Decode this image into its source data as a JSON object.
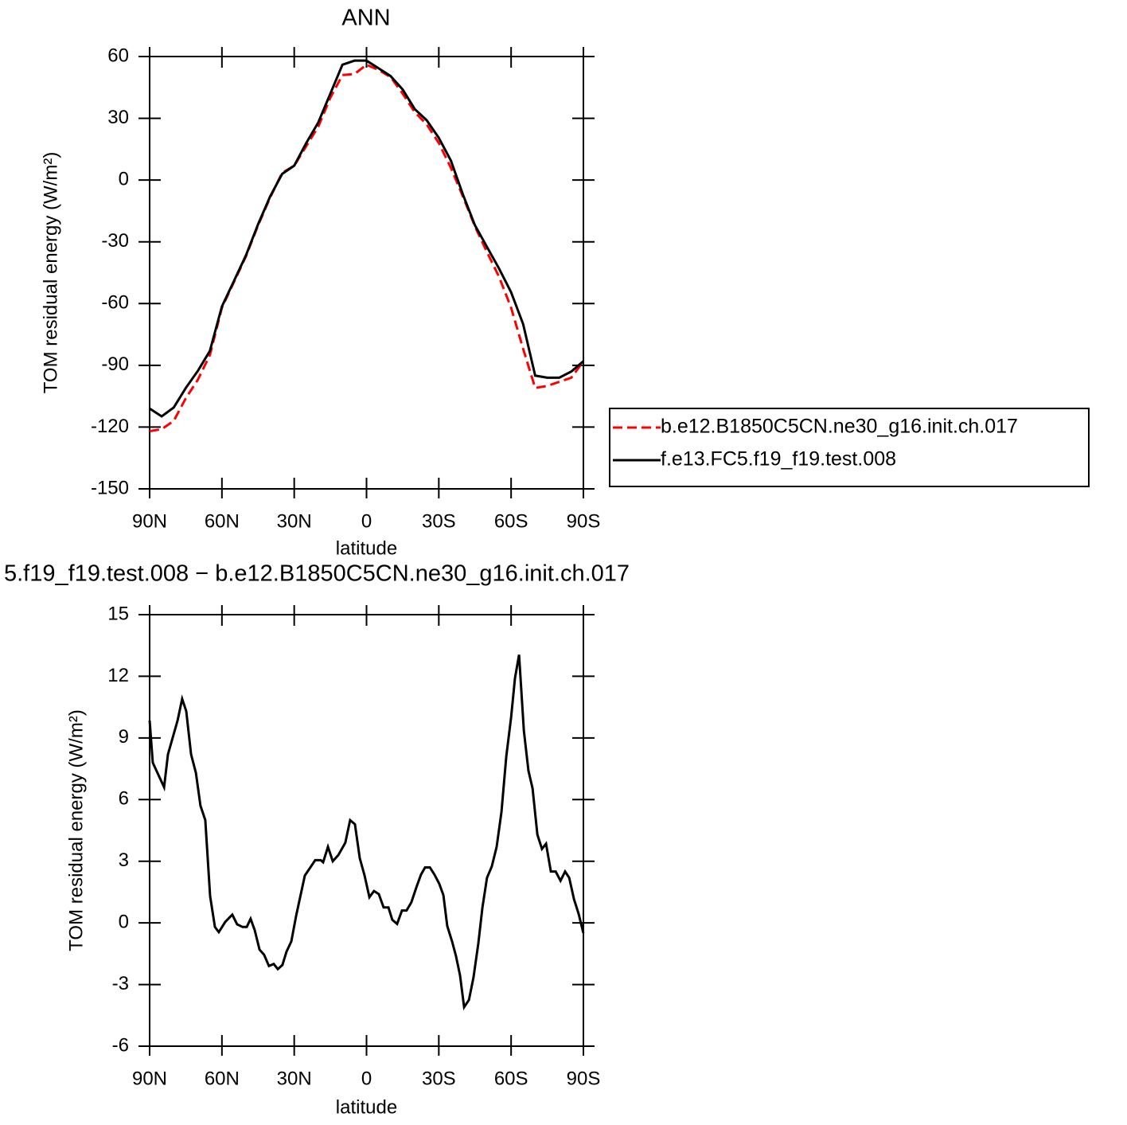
{
  "chart_data": [
    {
      "type": "line",
      "title": "ANN",
      "xlabel": "latitude",
      "ylabel": "TOM residual energy (W/m²)",
      "x": [
        90,
        85,
        80,
        75,
        70,
        65,
        60,
        55,
        50,
        45,
        40,
        35,
        30,
        25,
        20,
        15,
        10,
        5,
        0,
        -5,
        -10,
        -15,
        -20,
        -25,
        -30,
        -35,
        -40,
        -45,
        -50,
        -55,
        -60,
        -65,
        -70,
        -75,
        -80,
        -85,
        -90
      ],
      "series": [
        {
          "name": "b.e12.B1850C5CN.ne30_g16.init.ch.017",
          "color": "#ff0000",
          "line_style": "dashed",
          "values": [
            -122,
            -121,
            -117,
            -106,
            -97,
            -85,
            -62,
            -49.5,
            -37,
            -22,
            -8.5,
            3.5,
            7,
            16.5,
            26,
            40,
            51,
            51.5,
            56,
            53.5,
            50,
            42,
            33,
            27,
            18,
            6,
            -8,
            -22.5,
            -35,
            -47,
            -62,
            -82,
            -101,
            -100,
            -98,
            -96,
            -88
          ]
        },
        {
          "name": "f.e13.FC5.f19_f19.test.008",
          "color": "#000000",
          "line_style": "solid",
          "values": [
            -111,
            -114.8,
            -110.5,
            -101,
            -92.7,
            -83,
            -61.4,
            -49,
            -36.5,
            -21.5,
            -8,
            3,
            7,
            18,
            28,
            42,
            56,
            58,
            58,
            54.3,
            50.5,
            44,
            34.5,
            29,
            20.5,
            9.5,
            -7,
            -22,
            -32.5,
            -43,
            -54.5,
            -70,
            -95,
            -96,
            -96,
            -93,
            -88
          ]
        }
      ],
      "xlim": [
        90,
        -90
      ],
      "ylim": [
        -150,
        60
      ],
      "xticks": [
        {
          "value": 90,
          "label": "90N"
        },
        {
          "value": 60,
          "label": "60N"
        },
        {
          "value": 30,
          "label": "30N"
        },
        0,
        {
          "value": -30,
          "label": "30S"
        },
        {
          "value": -60,
          "label": "60S"
        },
        {
          "value": -90,
          "label": "90S"
        }
      ],
      "yticks": [
        -150,
        -120,
        -90,
        -60,
        -30,
        0,
        30,
        60
      ],
      "legend": "right"
    },
    {
      "type": "line",
      "title": "5.f19_f19.test.008 − b.e12.B1850C5CN.ne30_g16.init.ch.017",
      "xlabel": "latitude",
      "ylabel": "TOM residual energy (W/m²)",
      "x": [
        90,
        88.7,
        84,
        82.4,
        78.4,
        76.5,
        74.8,
        72.8,
        70.8,
        68.9,
        66.9,
        64.9,
        62.9,
        61.3,
        58.6,
        55.7,
        53.7,
        51.4,
        49.7,
        48.1,
        46.4,
        44.4,
        42.5,
        40.5,
        38.5,
        36.8,
        34.9,
        33.2,
        31.2,
        29.2,
        25.6,
        23.3,
        21.3,
        19,
        18,
        16,
        14,
        11.7,
        8.8,
        6.8,
        4.8,
        2.8,
        0.8,
        -1.2,
        -3.1,
        -5.1,
        -7.1,
        -9.1,
        -10.7,
        -12.7,
        -14.7,
        -16.6,
        -18.6,
        -20.6,
        -22.6,
        -24.3,
        -26.3,
        -28.2,
        -30.2,
        -31.9,
        -33.5,
        -35.5,
        -37.1,
        -38.8,
        -40.5,
        -42.5,
        -44.4,
        -46.4,
        -48.1,
        -50,
        -52,
        -54,
        -56,
        -58,
        -60,
        -61.6,
        -63.3,
        -65.3,
        -67.2,
        -68.9,
        -70.9,
        -72.8,
        -74.5,
        -76.5,
        -78.5,
        -80.5,
        -82.4,
        -84.1,
        -86.1,
        -88,
        -90
      ],
      "series": [
        {
          "color": "#000000",
          "line_style": "solid",
          "values": [
            9.85,
            7.8,
            6.6,
            8.2,
            9.85,
            10.9,
            10.3,
            8.2,
            7.3,
            5.7,
            5.0,
            1.3,
            -0.2,
            -0.45,
            0.05,
            0.4,
            -0.07,
            -0.2,
            -0.2,
            0.2,
            -0.35,
            -1.3,
            -1.55,
            -2.1,
            -2.0,
            -2.25,
            -2.05,
            -1.4,
            -0.9,
            0.35,
            2.3,
            2.7,
            3.05,
            3.05,
            2.95,
            3.7,
            3.0,
            3.3,
            3.9,
            5.0,
            4.8,
            3.15,
            2.3,
            1.25,
            1.55,
            1.4,
            0.75,
            0.75,
            0.15,
            -0.05,
            0.6,
            0.6,
            1.0,
            1.7,
            2.35,
            2.7,
            2.7,
            2.35,
            1.9,
            1.35,
            -0.15,
            -0.9,
            -1.6,
            -2.55,
            -4.1,
            -3.75,
            -2.65,
            -1.0,
            0.75,
            2.2,
            2.75,
            3.7,
            5.4,
            8.1,
            10.0,
            11.9,
            13.05,
            9.35,
            7.4,
            6.55,
            4.3,
            3.6,
            3.85,
            2.5,
            2.5,
            2.05,
            2.5,
            2.2,
            1.15,
            0.45,
            -0.5
          ]
        }
      ],
      "xlim": [
        90,
        -90
      ],
      "ylim": [
        -6,
        15
      ],
      "xticks": [
        {
          "value": 90,
          "label": "90N"
        },
        {
          "value": 60,
          "label": "60N"
        },
        {
          "value": 30,
          "label": "30N"
        },
        0,
        {
          "value": -30,
          "label": "30S"
        },
        {
          "value": -60,
          "label": "60S"
        },
        {
          "value": -90,
          "label": "90S"
        }
      ],
      "yticks": [
        -6,
        -3,
        0,
        3,
        6,
        9,
        12,
        15
      ]
    }
  ]
}
